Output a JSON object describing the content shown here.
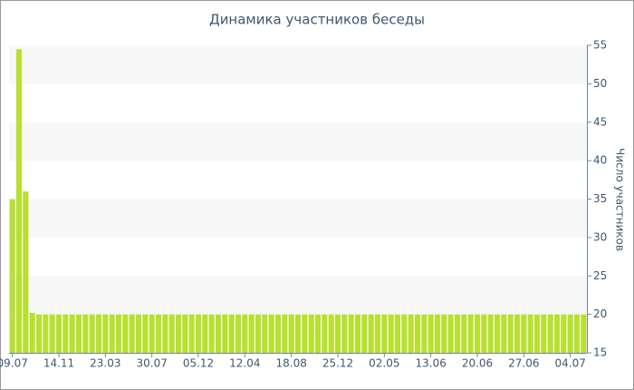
{
  "chart_data": {
    "type": "bar",
    "title": "Динамика участников беседы",
    "y_label": "Число участников",
    "categories": [
      "09.07",
      null,
      null,
      null,
      null,
      null,
      null,
      "14.11",
      null,
      null,
      null,
      null,
      null,
      null,
      "23.03",
      null,
      null,
      null,
      null,
      null,
      null,
      "30.07",
      null,
      null,
      null,
      null,
      null,
      null,
      "05.12",
      null,
      null,
      null,
      null,
      null,
      null,
      "12.04",
      null,
      null,
      null,
      null,
      null,
      null,
      "18.08",
      null,
      null,
      null,
      null,
      null,
      null,
      "25.12",
      null,
      null,
      null,
      null,
      null,
      null,
      "02.05",
      null,
      null,
      null,
      null,
      null,
      null,
      "13.06",
      null,
      null,
      null,
      null,
      null,
      null,
      "20.06",
      null,
      null,
      null,
      null,
      null,
      null,
      "27.06",
      null,
      null,
      null,
      null,
      null,
      null,
      "04.07",
      null,
      null
    ],
    "values": [
      35,
      54.5,
      36,
      20.2,
      20,
      20,
      20,
      20,
      20,
      20,
      20,
      20,
      20,
      20,
      20,
      20,
      20,
      20,
      20,
      20,
      20,
      20,
      20,
      20,
      20,
      20,
      20,
      20,
      20,
      20,
      20,
      20,
      20,
      20,
      20,
      20,
      20,
      20,
      20,
      20,
      20,
      20,
      20,
      20,
      20,
      20,
      20,
      20,
      20,
      20,
      20,
      20,
      20,
      20,
      20,
      20,
      20,
      20,
      20,
      20,
      20,
      20,
      20,
      20,
      20,
      20,
      20,
      20,
      20,
      20,
      20,
      20,
      20,
      20,
      20,
      20,
      20,
      20,
      20,
      20,
      20,
      20,
      20,
      20,
      20,
      20,
      20
    ],
    "color": "#b8e030",
    "ylim": [
      15,
      55
    ],
    "yticks": [
      15,
      20,
      25,
      30,
      35,
      40,
      45,
      50,
      55
    ],
    "y_axis_side": "right",
    "band_color": "#f7f7f7"
  }
}
